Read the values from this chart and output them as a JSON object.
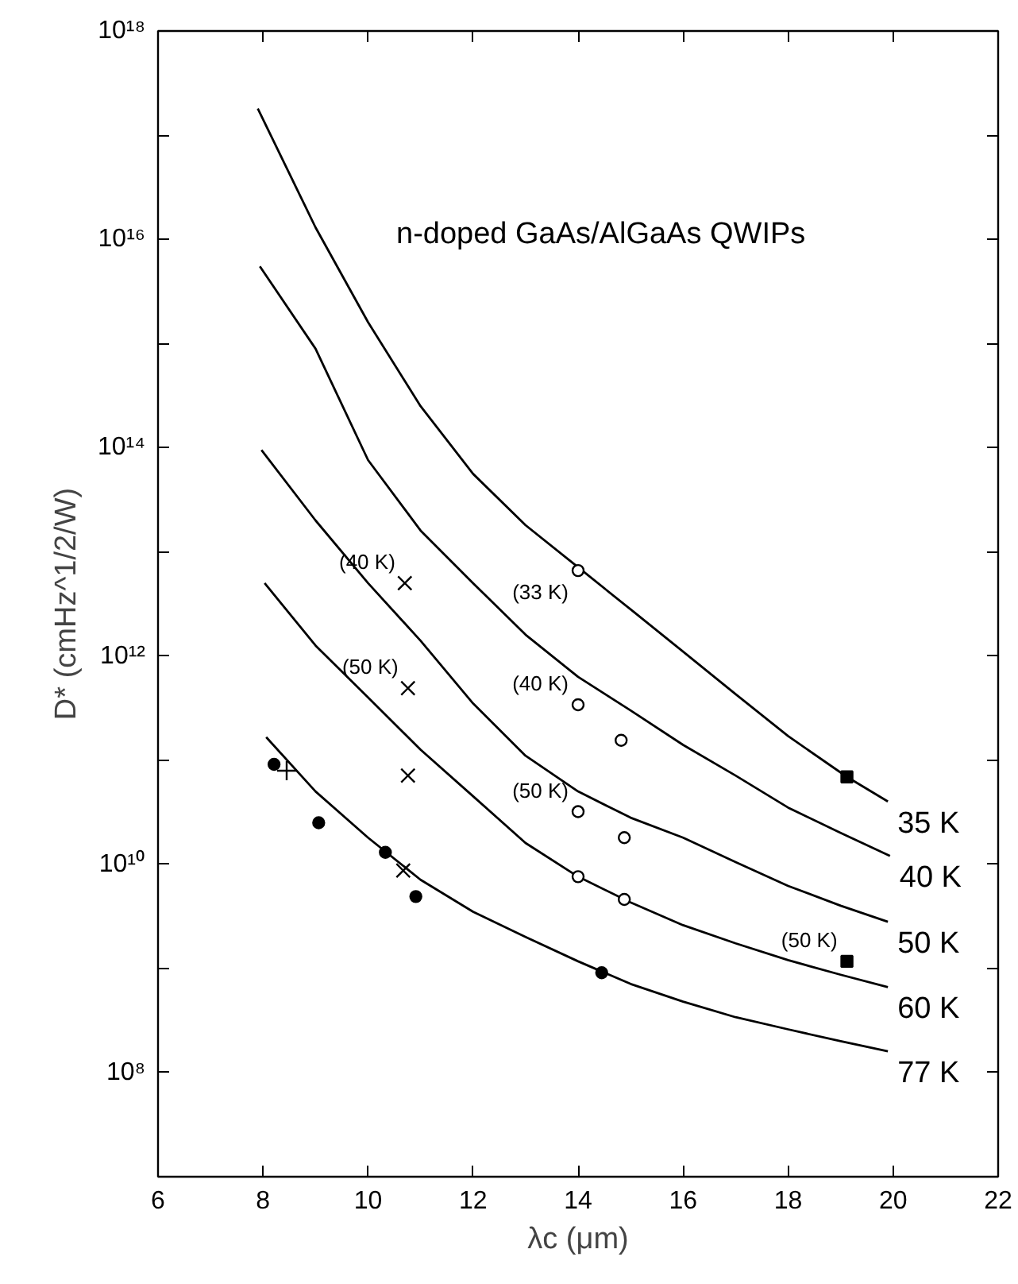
{
  "chart_data": {
    "type": "line",
    "xlabel": "λc (μm)",
    "ylabel": "D* (cmHz^1/2/W)",
    "log": "y",
    "grid": false,
    "legend": "right",
    "line_style": "solid",
    "xlim": [
      6,
      22
    ],
    "xticks": [
      6,
      8,
      10,
      12,
      14,
      16,
      18,
      20,
      22
    ],
    "ylim": [
      10000000.0,
      1e+18
    ],
    "yticks": [
      {
        "value": 10000000.0,
        "label": null
      },
      {
        "value": 100000000.0,
        "label": "10⁸"
      },
      {
        "value": 1000000000.0,
        "label": null
      },
      {
        "value": 10000000000.0,
        "label": "10¹⁰"
      },
      {
        "value": 100000000000.0,
        "label": null
      },
      {
        "value": 1000000000000.0,
        "label": "10¹²"
      },
      {
        "value": 10000000000000.0,
        "label": null
      },
      {
        "value": 100000000000000.0,
        "label": "10¹⁴"
      },
      {
        "value": 1000000000000000.0,
        "label": null
      },
      {
        "value": 1e+16,
        "label": "10¹⁶"
      },
      {
        "value": 1e+17,
        "label": null
      },
      {
        "value": 1e+18,
        "label": "10¹⁸"
      }
    ],
    "series": [
      {
        "name": "35 K",
        "color": "#000000",
        "x": [
          7.9,
          9,
          10,
          11,
          12,
          13,
          14,
          15,
          16,
          17,
          18,
          19.12,
          19.9
        ],
        "values": [
          1.8e+17,
          1.3e+16,
          1600000000000000.0,
          250000000000000.0,
          56000000000000.0,
          18000000000000.0,
          7100000000000.0,
          2800000000000.0,
          1100000000000.0,
          430000000000.0,
          170000000000.0,
          69000000000.0,
          40000000000.0
        ]
      },
      {
        "name": "40 K",
        "color": "#000000",
        "x": [
          7.94,
          9,
          10,
          11,
          12,
          13,
          14,
          15,
          16,
          17,
          18,
          19,
          19.94
        ],
        "values": [
          5500000000000000.0,
          890000000000000.0,
          76000000000000.0,
          16000000000000.0,
          5000000000000.0,
          1600000000000.0,
          630000000000.0,
          300000000000.0,
          140000000000.0,
          71000000000.0,
          35000000000.0,
          20000000000.0,
          12000000000.0
        ]
      },
      {
        "name": "50 K",
        "color": "#000000",
        "x": [
          7.97,
          9,
          10,
          11,
          12,
          13,
          14,
          15,
          16,
          17,
          18,
          19,
          19.9
        ],
        "values": [
          95000000000000.0,
          20000000000000.0,
          5000000000000.0,
          1400000000000.0,
          350000000000.0,
          110000000000.0,
          50000000000.0,
          28000000000.0,
          18000000000.0,
          10500000000.0,
          6200000000.0,
          4000000000.0,
          2800000000.0
        ]
      },
      {
        "name": "60 K",
        "color": "#000000",
        "x": [
          8.03,
          9,
          10,
          11,
          12,
          13,
          14,
          15,
          16,
          17,
          18,
          19,
          19.9
        ],
        "values": [
          5000000000000.0,
          1260000000000.0,
          400000000000.0,
          126000000000.0,
          45000000000.0,
          16000000000.0,
          7600000000.0,
          4300000000.0,
          2600000000.0,
          1740000000.0,
          1200000000.0,
          870000000.0,
          660000000.0
        ]
      },
      {
        "name": "77 K",
        "color": "#000000",
        "x": [
          8.06,
          9,
          10,
          11,
          12,
          13,
          14,
          15,
          16,
          17,
          18,
          19,
          19.9
        ],
        "values": [
          166000000000.0,
          50000000000.0,
          18000000000.0,
          7100000000.0,
          3500000000.0,
          2000000000.0,
          1170000000.0,
          710000000.0,
          480000000.0,
          340000000.0,
          260000000.0,
          200000000.0,
          160000000.0
        ]
      },
      {
        "type": "scatter",
        "marker": "x",
        "color": "#000000",
        "x": [
          10.7,
          10.76,
          10.76,
          10.67
        ],
        "values": [
          5000000000000.0,
          490000000000.0,
          71000000000.0,
          8700000000.0
        ]
      },
      {
        "type": "scatter",
        "marker": "cross",
        "color": "#000000",
        "x": [
          8.45
        ],
        "values": [
          79000000000.0
        ]
      },
      {
        "type": "scatter",
        "marker": "circle",
        "color": "#000000",
        "x": [
          8.21,
          9.06,
          10.33,
          10.91,
          14.45
        ],
        "values": [
          91000000000.0,
          25000000000.0,
          13000000000.0,
          4900000000.0,
          910000000.0
        ]
      },
      {
        "type": "scatter",
        "marker": "circle",
        "color": "#ffffff",
        "x": [
          14,
          14,
          14.82,
          14,
          14.88,
          14,
          14.88
        ],
        "values": [
          6600000000000.0,
          340000000000.0,
          155000000000.0,
          32000000000.0,
          18000000000.0,
          7600000000.0,
          4600000000.0
        ]
      },
      {
        "type": "scatter",
        "marker": "square",
        "color": "#000000",
        "x": [
          19.12,
          19.12
        ],
        "values": [
          69000000000.0,
          1170000000.0
        ]
      }
    ],
    "annotations": [
      "n-doped GaAs/AlGaAs QWIPs",
      {
        "text": "(40 K)",
        "x": 10.7,
        "y": 5000000000000.0
      },
      {
        "text": "(50 K)",
        "x": 10.76,
        "y": 490000000000.0
      },
      {
        "text": "(33 K)",
        "x": 14,
        "y": 6600000000000.0
      },
      {
        "text": "(40 K)",
        "x": 14,
        "y": 340000000000.0
      },
      {
        "text": "(50 K)",
        "x": 14,
        "y": 32000000000.0
      },
      {
        "text": "(50 K)",
        "x": 19.12,
        "y": 1170000000.0
      }
    ]
  }
}
